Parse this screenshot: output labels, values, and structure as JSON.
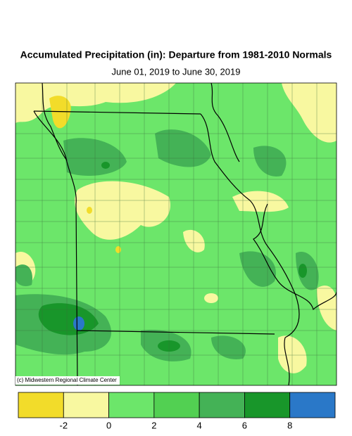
{
  "title": "Accumulated Precipitation (in): Departure from 1981-2010 Normals",
  "subtitle": "June 01, 2019 to June 30, 2019",
  "credit": "(c) Midwestern Regional Climate Center",
  "legend": {
    "colors": [
      "#f2dc2a",
      "#f8f8a0",
      "#6ce66a",
      "#52d052",
      "#44b256",
      "#18962a",
      "#2a78c8"
    ],
    "ticks": [
      -2,
      0,
      2,
      4,
      6,
      8
    ]
  }
}
